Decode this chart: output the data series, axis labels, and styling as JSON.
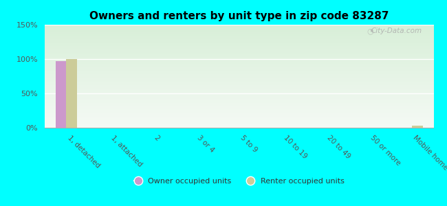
{
  "title": "Owners and renters by unit type in zip code 83287",
  "categories": [
    "1, detached",
    "1, attached",
    "2",
    "3 or 4",
    "5 to 9",
    "10 to 19",
    "20 to 49",
    "50 or more",
    "Mobile home"
  ],
  "owner_values": [
    97,
    0,
    0,
    0,
    0,
    0,
    0,
    0,
    0
  ],
  "renter_values": [
    100,
    0,
    0,
    0,
    0,
    0,
    0,
    0,
    3
  ],
  "owner_color": "#cc99cc",
  "renter_color": "#cccc99",
  "background_top": "#d8efd8",
  "background_bottom": "#f5faf5",
  "background_fig": "#00ffff",
  "ylim": [
    0,
    150
  ],
  "yticks": [
    0,
    50,
    100,
    150
  ],
  "ytick_labels": [
    "0%",
    "50%",
    "100%",
    "150%"
  ],
  "bar_width": 0.25,
  "legend_owner": "Owner occupied units",
  "legend_renter": "Renter occupied units",
  "watermark": "City-Data.com"
}
